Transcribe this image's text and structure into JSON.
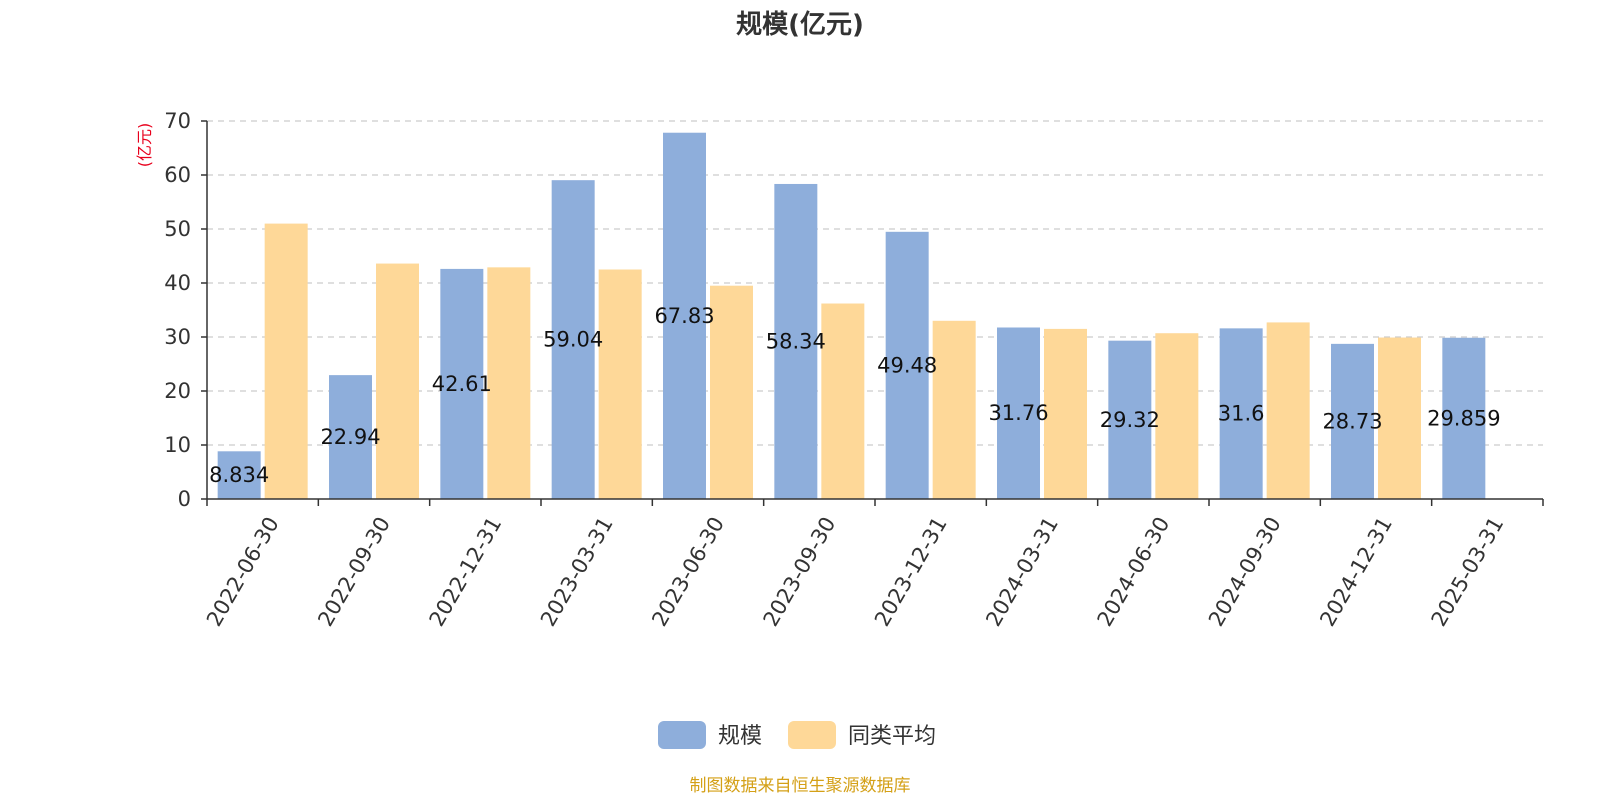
{
  "chart_data": {
    "type": "bar",
    "title": "规模(亿元)",
    "ylabel": "(亿元)",
    "xlabel": "",
    "ylim": [
      0,
      70
    ],
    "yticks": [
      0,
      10,
      20,
      30,
      40,
      50,
      60,
      70
    ],
    "grid": true,
    "legend_position": "bottom-center",
    "categories": [
      "2022-06-30",
      "2022-09-30",
      "2022-12-31",
      "2023-03-31",
      "2023-06-30",
      "2023-09-30",
      "2023-12-31",
      "2024-03-31",
      "2024-06-30",
      "2024-09-30",
      "2024-12-31",
      "2025-03-31"
    ],
    "series": [
      {
        "name": "规模",
        "color": "#8eaedb",
        "values": [
          8.834,
          22.94,
          42.61,
          59.04,
          67.83,
          58.34,
          49.48,
          31.76,
          29.32,
          31.6,
          28.73,
          29.859
        ],
        "labels": [
          "8.834",
          "22.94",
          "42.61",
          "59.04",
          "67.83",
          "58.34",
          "49.48",
          "31.76",
          "29.32",
          "31.6",
          "28.73",
          "29.859"
        ]
      },
      {
        "name": "同类平均",
        "color": "#fed898",
        "values": [
          51.0,
          43.6,
          42.9,
          42.5,
          39.5,
          36.2,
          33.0,
          31.5,
          30.7,
          32.7,
          29.9,
          null
        ]
      }
    ],
    "source": "制图数据来自恒生聚源数据库",
    "colors": {
      "unit": "#e8001c",
      "source": "#d4a017",
      "axis": "#333333",
      "grid": "#cccccc"
    }
  }
}
